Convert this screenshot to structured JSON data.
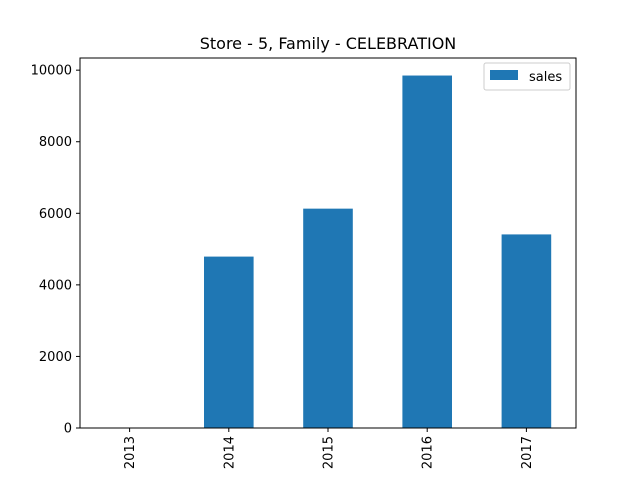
{
  "chart_data": {
    "type": "bar",
    "title": "Store - 5, Family - CELEBRATION",
    "xlabel": "",
    "ylabel": "",
    "categories": [
      "2013",
      "2014",
      "2015",
      "2016",
      "2017"
    ],
    "series": [
      {
        "name": "sales",
        "values": [
          0,
          4790,
          6130,
          9850,
          5410
        ],
        "color": "#1f77b4"
      }
    ],
    "ylim": [
      0,
      10340
    ],
    "yticks": [
      0,
      2000,
      4000,
      6000,
      8000,
      10000
    ],
    "ytick_labels": [
      "0",
      "2000",
      "4000",
      "6000",
      "8000",
      "10000"
    ],
    "grid": false,
    "legend_position": "upper right",
    "xtick_rotation": "vertical"
  }
}
